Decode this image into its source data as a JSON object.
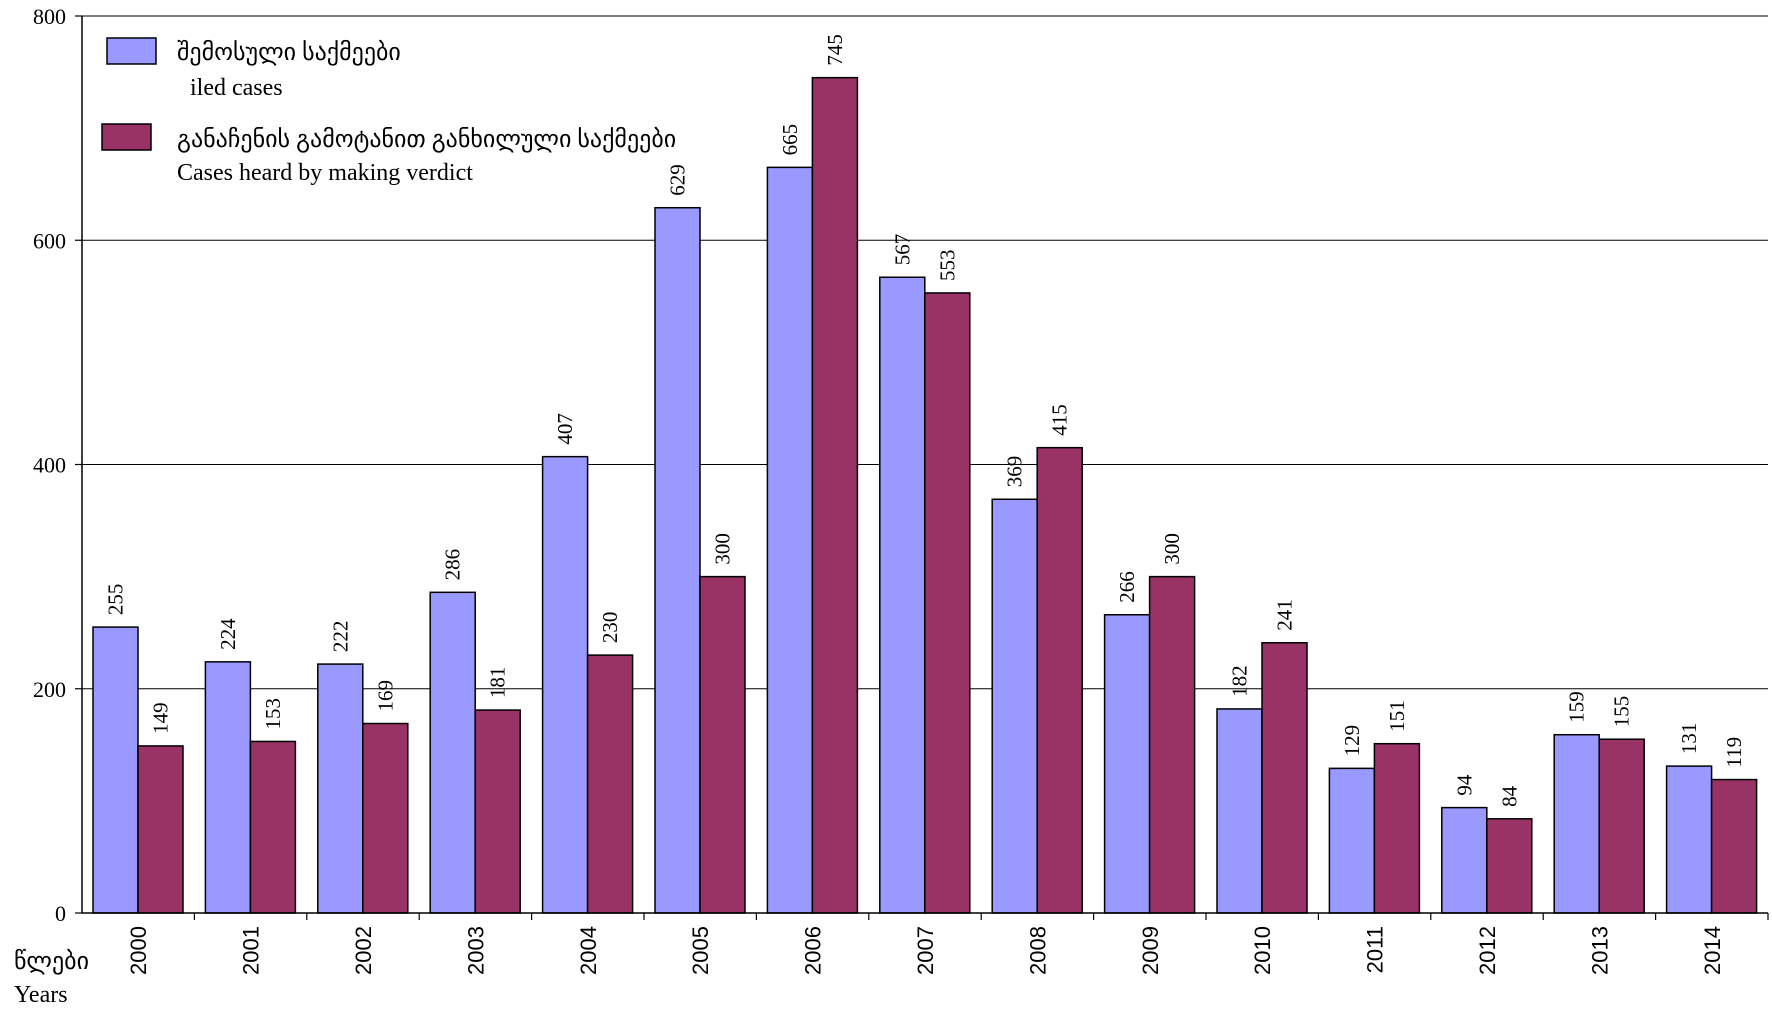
{
  "chart_data": {
    "type": "bar",
    "categories": [
      "2000",
      "2001",
      "2002",
      "2003",
      "2004",
      "2005",
      "2006",
      "2007",
      "2008",
      "2009",
      "2010",
      "2011",
      "2012",
      "2013",
      "2014"
    ],
    "series": [
      {
        "name": "შემოსული საქმეები",
        "name_en": "iled cases",
        "color": "#9999ff",
        "values": [
          255,
          224,
          222,
          286,
          407,
          629,
          665,
          567,
          369,
          266,
          182,
          129,
          94,
          159,
          131
        ]
      },
      {
        "name": "განაჩენის გამოტანით განხილული საქმეები",
        "name_en": "Cases heard by making verdict",
        "color": "#993366",
        "values": [
          149,
          153,
          169,
          181,
          230,
          300,
          745,
          553,
          415,
          300,
          241,
          151,
          84,
          155,
          119
        ]
      }
    ],
    "ylim": [
      0,
      800
    ],
    "yticks": [
      0,
      200,
      400,
      600,
      800
    ],
    "grid": true,
    "legend_position": "top-left",
    "xlabel": "წლები",
    "xlabel_en": "Years"
  }
}
